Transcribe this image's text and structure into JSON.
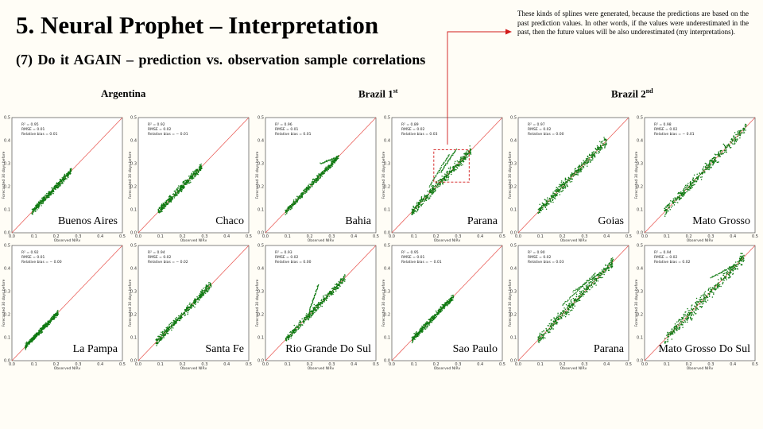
{
  "title": "5. Neural Prophet – Interpretation",
  "subtitle": "(7) Do it AGAIN – prediction  vs. observation  sample  correlations",
  "note": "These kinds of splines were generated, because the predictions are based on the past prediction values. In other words, if the values were underestimated in the past, then the future values will be also underestimated (my interpretations).",
  "groups": [
    {
      "label": "Argentina",
      "sup": ""
    },
    {
      "label": "Brazil 1",
      "sup": "st"
    },
    {
      "label": "Brazil 2",
      "sup": "nd"
    }
  ],
  "colors": {
    "points": "#0f7a12",
    "one_to_one": "#e8504a",
    "annotation": "#d21a1a"
  },
  "chart_data": [
    {
      "type": "scatter",
      "region": "Buenos Aires",
      "r2": "0.95",
      "rmse": "0.01",
      "bias": "0.01",
      "xlabel": "Observed NIRv",
      "ylabel": "Forecasted 30 days before",
      "xlim": [
        0,
        0.5
      ],
      "ylim": [
        0,
        0.5
      ],
      "range": [
        0.09,
        0.27
      ],
      "spread": 0.012,
      "extras": []
    },
    {
      "type": "scatter",
      "region": "Chaco",
      "r2": "0.92",
      "rmse": "0.02",
      "bias": "− 0.01",
      "xlabel": "Observed NIRv",
      "ylabel": "Forecasted 30 days before",
      "xlim": [
        0,
        0.5
      ],
      "ylim": [
        0,
        0.5
      ],
      "range": [
        0.09,
        0.29
      ],
      "spread": 0.015,
      "extras": []
    },
    {
      "type": "scatter",
      "region": "Bahia",
      "r2": "0.96",
      "rmse": "0.01",
      "bias": "0.01",
      "xlabel": "Observed NIRv",
      "ylabel": "Forecasted 30 days before",
      "xlim": [
        0,
        0.5
      ],
      "ylim": [
        0,
        0.5
      ],
      "range": [
        0.09,
        0.33
      ],
      "spread": 0.012,
      "extras": [
        [
          0.25,
          0.3,
          0.33,
          0.33
        ]
      ]
    },
    {
      "type": "scatter",
      "region": "Parana",
      "r2": "0.89",
      "rmse": "0.02",
      "bias": "0.03",
      "xlabel": "Observed NIRv",
      "ylabel": "Forecasted 30 days before",
      "xlim": [
        0,
        0.5
      ],
      "ylim": [
        0,
        0.5
      ],
      "range": [
        0.09,
        0.36
      ],
      "spread": 0.018,
      "extras": [
        [
          0.17,
          0.2,
          0.26,
          0.34
        ],
        [
          0.22,
          0.26,
          0.29,
          0.36
        ]
      ],
      "highlight": [
        0.19,
        0.36,
        0.35,
        0.22
      ]
    },
    {
      "type": "scatter",
      "region": "Goias",
      "r2": "0.97",
      "rmse": "0.02",
      "bias": "0.00",
      "xlabel": "Observed NIRv",
      "ylabel": "Forecasted 30 days before",
      "xlim": [
        0,
        0.5
      ],
      "ylim": [
        0,
        0.5
      ],
      "range": [
        0.09,
        0.4
      ],
      "spread": 0.02,
      "extras": []
    },
    {
      "type": "scatter",
      "region": "Mato Grosso",
      "r2": "0.98",
      "rmse": "0.02",
      "bias": "− 0.01",
      "xlabel": "Observed NIRv",
      "ylabel": "Forecasted 30 days before",
      "xlim": [
        0,
        0.5
      ],
      "ylim": [
        0,
        0.5
      ],
      "range": [
        0.09,
        0.46
      ],
      "spread": 0.02,
      "extras": []
    },
    {
      "type": "scatter",
      "region": "La Pampa",
      "r2": "0.92",
      "rmse": "0.01",
      "bias": "− 0.00",
      "xlabel": "Observed NIRv",
      "ylabel": "Forecasted 30 days before",
      "xlim": [
        0,
        0.5
      ],
      "ylim": [
        0,
        0.5
      ],
      "range": [
        0.06,
        0.21
      ],
      "spread": 0.01,
      "extras": []
    },
    {
      "type": "scatter",
      "region": "Santa Fe",
      "r2": "0.94",
      "rmse": "0.02",
      "bias": "− 0.02",
      "xlabel": "Observed NIRv",
      "ylabel": "Forecasted 30 days before",
      "xlim": [
        0,
        0.5
      ],
      "ylim": [
        0,
        0.5
      ],
      "range": [
        0.08,
        0.33
      ],
      "spread": 0.015,
      "extras": []
    },
    {
      "type": "scatter",
      "region": "Rio Grande Do Sul",
      "r2": "0.93",
      "rmse": "0.02",
      "bias": "0.00",
      "xlabel": "Observed NIRv",
      "ylabel": "Forecasted 30 days before",
      "xlim": [
        0,
        0.5
      ],
      "ylim": [
        0,
        0.5
      ],
      "range": [
        0.09,
        0.36
      ],
      "spread": 0.015,
      "extras": [
        [
          0.2,
          0.22,
          0.24,
          0.33
        ]
      ]
    },
    {
      "type": "scatter",
      "region": "Sao Paulo",
      "r2": "0.95",
      "rmse": "0.01",
      "bias": "− 0.01",
      "xlabel": "Observed NIRv",
      "ylabel": "Forecasted 30 days before",
      "xlim": [
        0,
        0.5
      ],
      "ylim": [
        0,
        0.5
      ],
      "range": [
        0.09,
        0.28
      ],
      "spread": 0.012,
      "extras": []
    },
    {
      "type": "scatter",
      "region": "Parana",
      "r2": "0.90",
      "rmse": "0.02",
      "bias": "0.03",
      "xlabel": "Observed NIRv",
      "ylabel": "Forecasted 30 days before",
      "xlim": [
        0,
        0.5
      ],
      "ylim": [
        0,
        0.5
      ],
      "range": [
        0.09,
        0.43
      ],
      "spread": 0.02,
      "extras": [
        [
          0.2,
          0.24,
          0.35,
          0.38
        ],
        [
          0.25,
          0.3,
          0.4,
          0.4
        ]
      ]
    },
    {
      "type": "scatter",
      "region": "Mato Grosso Do Sul",
      "r2": "0.94",
      "rmse": "0.02",
      "bias": "0.02",
      "xlabel": "Observed NIRv",
      "ylabel": "Forecasted 30 days before",
      "xlim": [
        0,
        0.5
      ],
      "ylim": [
        0,
        0.5
      ],
      "range": [
        0.09,
        0.45
      ],
      "spread": 0.025,
      "extras": [
        [
          0.3,
          0.36,
          0.42,
          0.42
        ]
      ]
    }
  ],
  "tick_labels": [
    "0.0",
    "0.1",
    "0.2",
    "0.3",
    "0.4",
    "0.5"
  ]
}
